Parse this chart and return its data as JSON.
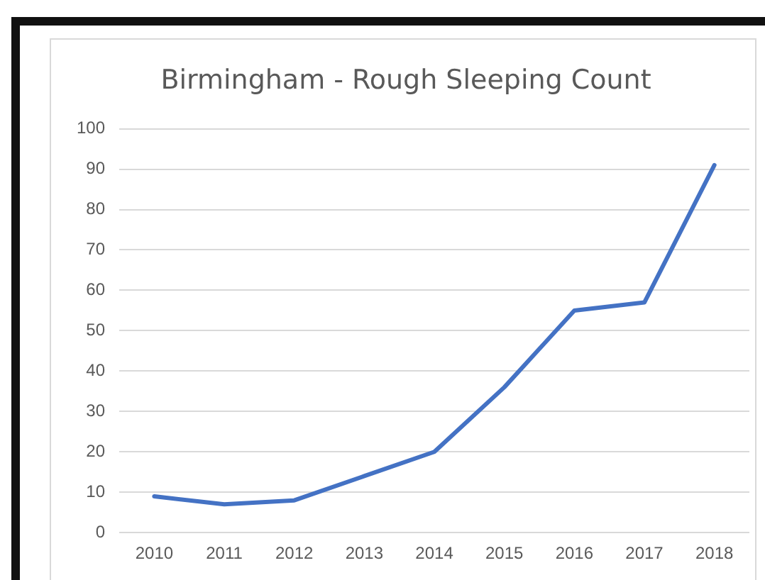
{
  "chart_data": {
    "type": "line",
    "title": "Birmingham - Rough Sleeping Count",
    "categories": [
      "2010",
      "2011",
      "2012",
      "2013",
      "2014",
      "2015",
      "2016",
      "2017",
      "2018"
    ],
    "series": [
      {
        "color": "#4472c4",
        "values": [
          9,
          7,
          8,
          14,
          20,
          36,
          55,
          57,
          91
        ]
      }
    ],
    "ylim": [
      0,
      100
    ],
    "yticks": [
      0,
      10,
      20,
      30,
      40,
      50,
      60,
      70,
      80,
      90,
      100
    ],
    "grid": "y",
    "legend": false,
    "marker": "none"
  }
}
